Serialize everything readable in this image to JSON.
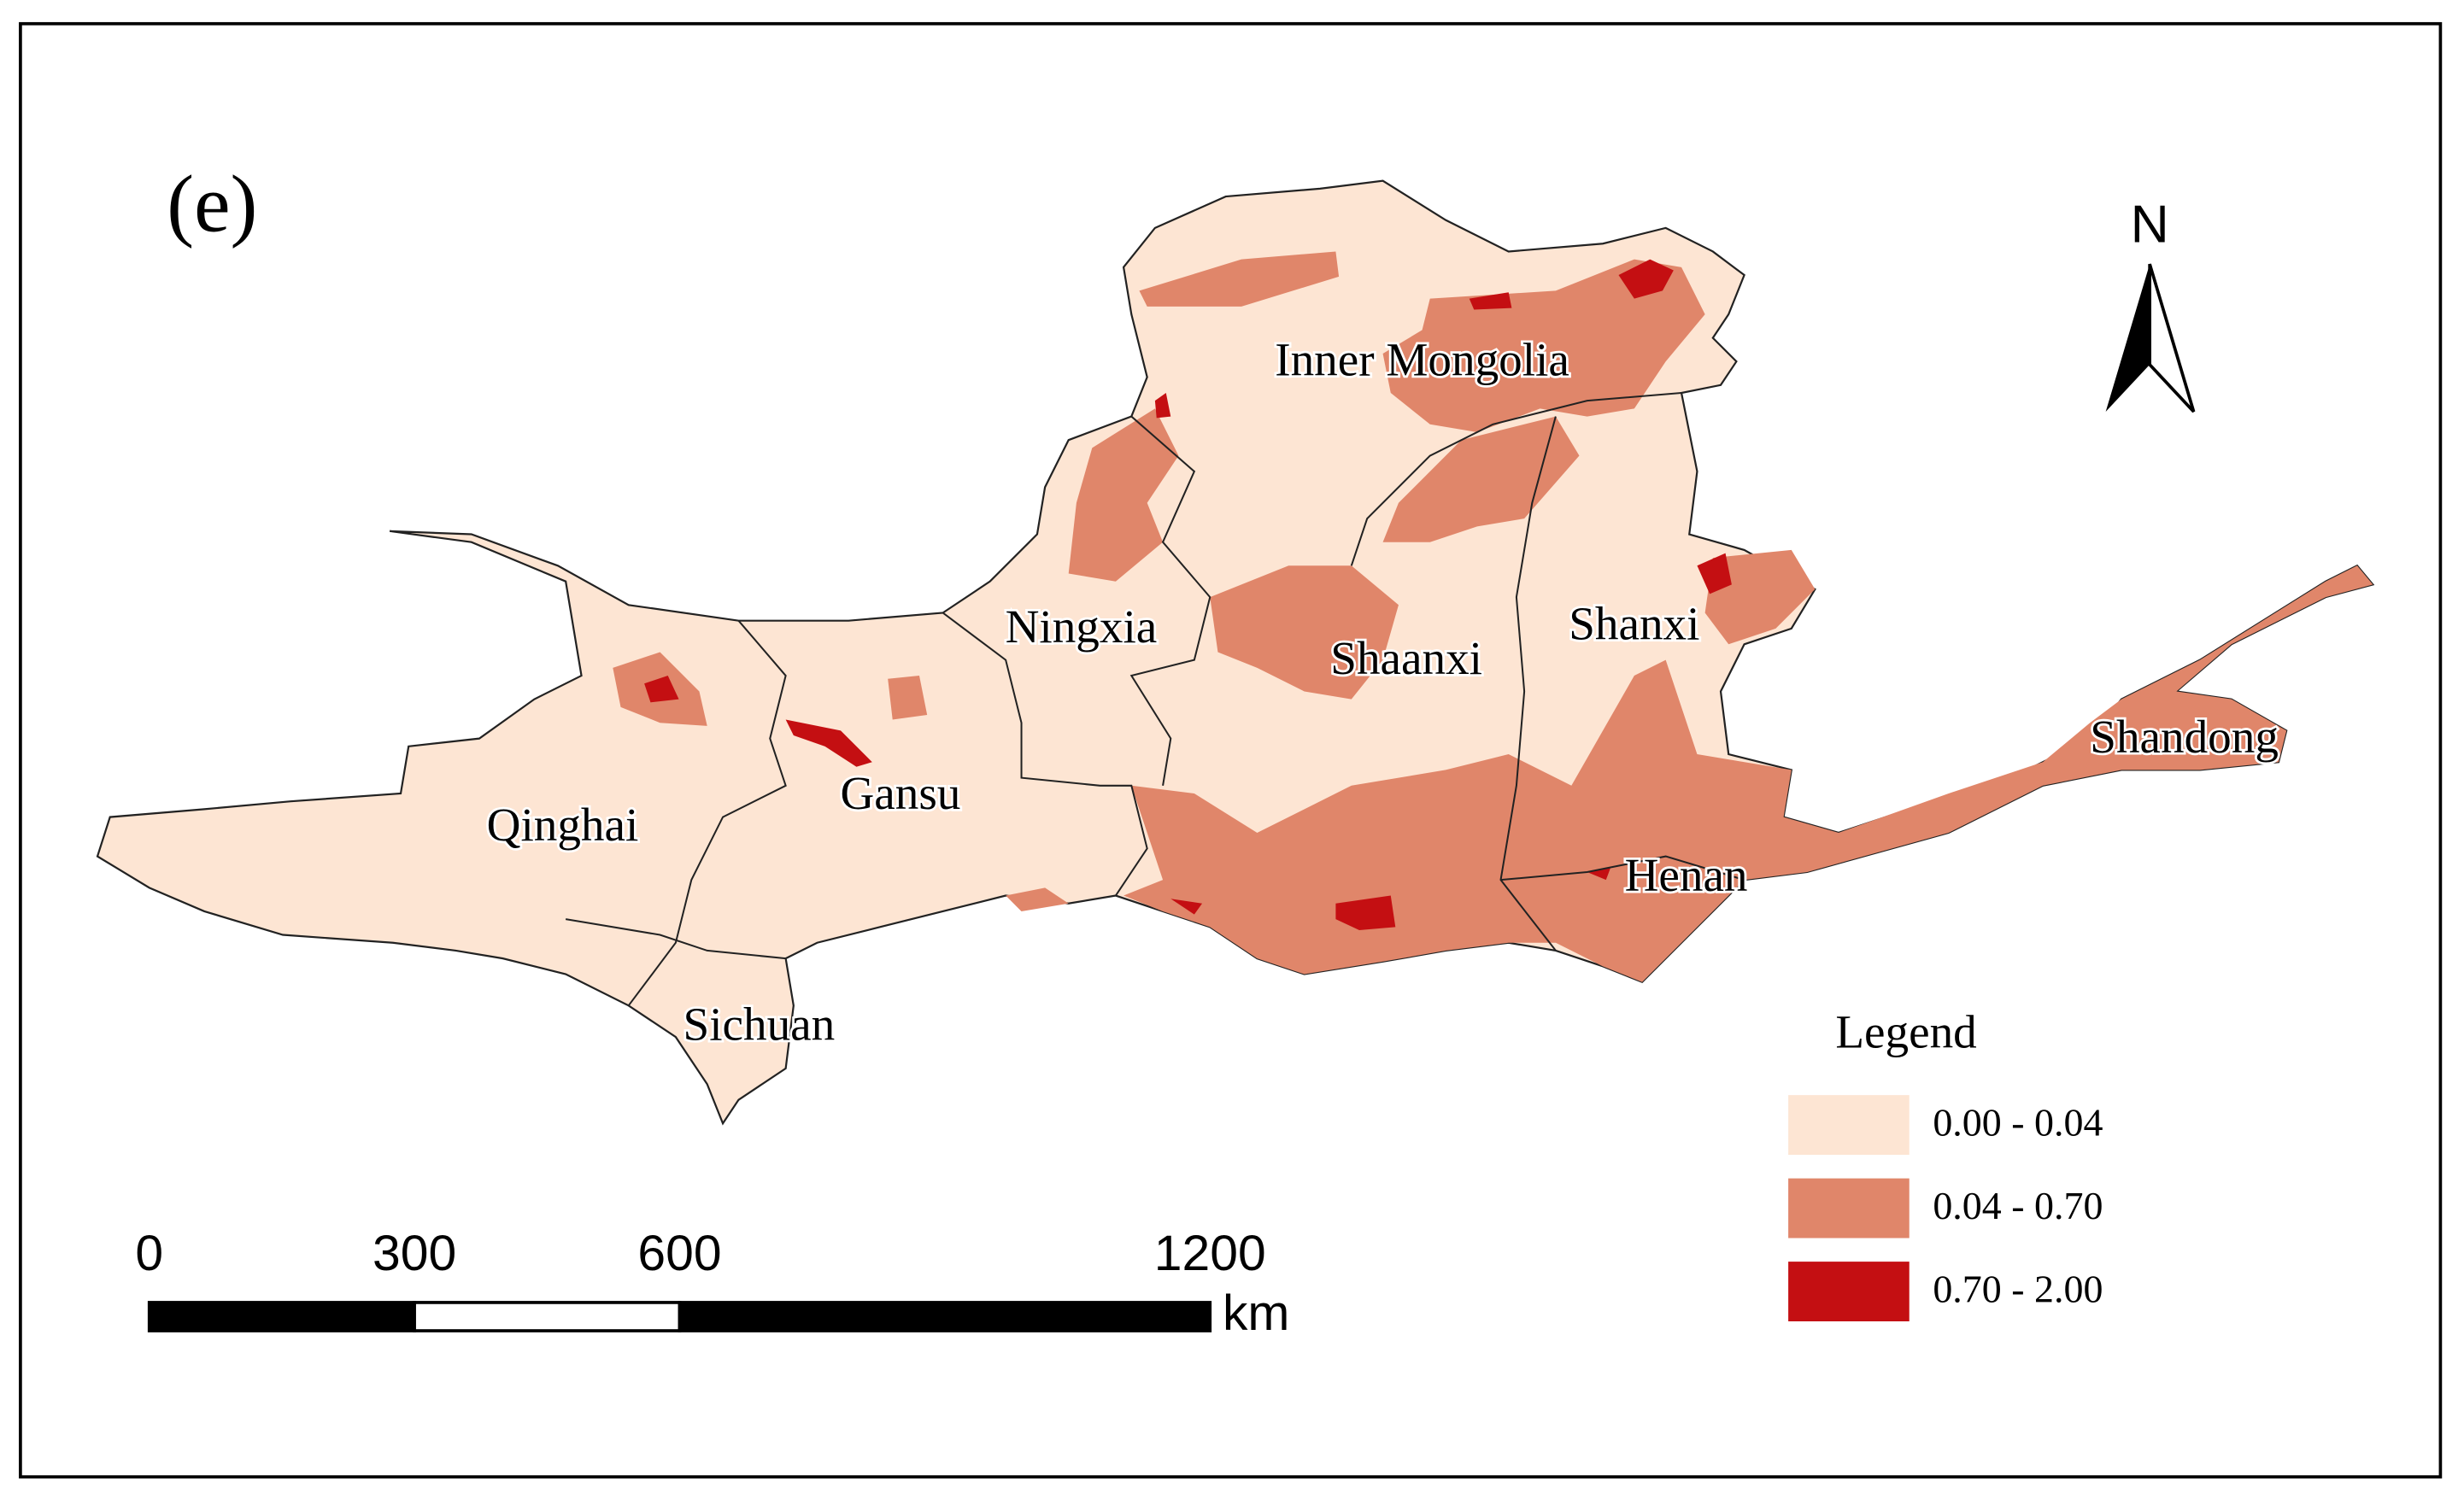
{
  "panel_label": "(e)",
  "north_arrow": "N",
  "regions": [
    {
      "label": "Inner Mongolia"
    },
    {
      "label": "Ningxia"
    },
    {
      "label": "Shaanxi"
    },
    {
      "label": "Shanxi"
    },
    {
      "label": "Gansu"
    },
    {
      "label": "Qinghai"
    },
    {
      "label": "Henan"
    },
    {
      "label": "Shandong"
    },
    {
      "label": "Sichuan"
    }
  ],
  "legend": {
    "title": "Legend",
    "items": [
      {
        "label": "0.00 - 0.04",
        "color": "#fde5d3"
      },
      {
        "label": "0.04 - 0.70",
        "color": "#e0866a"
      },
      {
        "label": "0.70 - 2.00",
        "color": "#c40f12"
      }
    ]
  },
  "scale_bar": {
    "ticks": [
      0,
      300,
      600,
      1200
    ],
    "unit": "km"
  }
}
